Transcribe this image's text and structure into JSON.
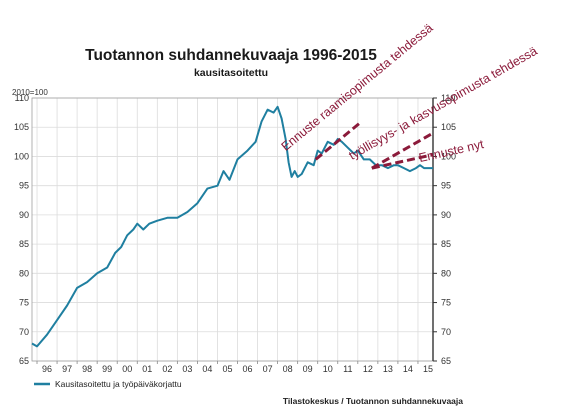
{
  "chart_data": {
    "type": "line",
    "title": "Tuotannon suhdannekuvaaja 1996-2015",
    "subtitle": "kausitasoitettu",
    "y_unit_label": "2010=100",
    "source": "Tilastokeskus / Tuotannon suhdannekuvaaja",
    "ylim": [
      65,
      110
    ],
    "y_ticks": [
      "65",
      "70",
      "75",
      "80",
      "85",
      "90",
      "95",
      "100",
      "105",
      "110"
    ],
    "x_range": [
      1995.75,
      2015.75
    ],
    "x_ticks": [
      "96",
      "97",
      "98",
      "99",
      "00",
      "01",
      "02",
      "03",
      "04",
      "05",
      "06",
      "07",
      "08",
      "09",
      "10",
      "11",
      "12",
      "13",
      "14",
      "15"
    ],
    "grid": true,
    "legend_position": "bottom-left",
    "series": [
      {
        "name": "Kausitasoitettu ja työpäiväkorjattu",
        "color": "#1f7fa0",
        "x": [
          1995.75,
          1996.0,
          1996.5,
          1997.0,
          1997.5,
          1998.0,
          1998.5,
          1999.0,
          1999.5,
          1999.9,
          2000.2,
          2000.5,
          2000.8,
          2001.0,
          2001.3,
          2001.6,
          2002.0,
          2002.5,
          2003.0,
          2003.5,
          2004.0,
          2004.5,
          2005.0,
          2005.3,
          2005.6,
          2006.0,
          2006.5,
          2006.9,
          2007.2,
          2007.5,
          2007.8,
          2008.0,
          2008.2,
          2008.4,
          2008.55,
          2008.7,
          2008.85,
          2009.0,
          2009.2,
          2009.5,
          2009.8,
          2010.0,
          2010.2,
          2010.5,
          2010.8,
          2011.0,
          2011.2,
          2011.5,
          2011.8,
          2012.0,
          2012.3,
          2012.6,
          2012.9,
          2013.2,
          2013.5,
          2013.8,
          2014.0,
          2014.3,
          2014.6,
          2014.9,
          2015.1,
          2015.3,
          2015.5,
          2015.75
        ],
        "y": [
          68.0,
          67.5,
          69.5,
          72.0,
          74.5,
          77.5,
          78.5,
          80.0,
          81.0,
          83.5,
          84.5,
          86.5,
          87.5,
          88.5,
          87.5,
          88.5,
          89.0,
          89.5,
          89.5,
          90.5,
          92.0,
          94.5,
          95.0,
          97.5,
          96.0,
          99.5,
          101.0,
          102.5,
          106.0,
          108.0,
          107.5,
          108.5,
          106.5,
          103.0,
          99.0,
          96.5,
          97.5,
          96.5,
          97.0,
          99.0,
          98.5,
          101.0,
          100.5,
          102.5,
          102.0,
          103.0,
          102.5,
          101.5,
          100.5,
          101.0,
          99.5,
          99.5,
          98.5,
          98.5,
          98.0,
          98.5,
          98.5,
          98.0,
          97.5,
          98.0,
          98.5,
          98.0,
          98.0,
          98.0
        ]
      }
    ],
    "annotations": [
      {
        "text": "Ennuste raamisopimusta tehdessä",
        "x1": 2009.9,
        "y1": 99.5,
        "x2": 2012.2,
        "y2": 106.0
      },
      {
        "text": "työllisyys- ja kasvusopimusta tehdessä",
        "x1": 2012.7,
        "y1": 98.0,
        "x2": 2015.75,
        "y2": 104.0
      },
      {
        "text": "Ennuste nyt",
        "x1": 2012.7,
        "y1": 98.0,
        "x2": 2015.75,
        "y2": 100.3
      }
    ]
  }
}
